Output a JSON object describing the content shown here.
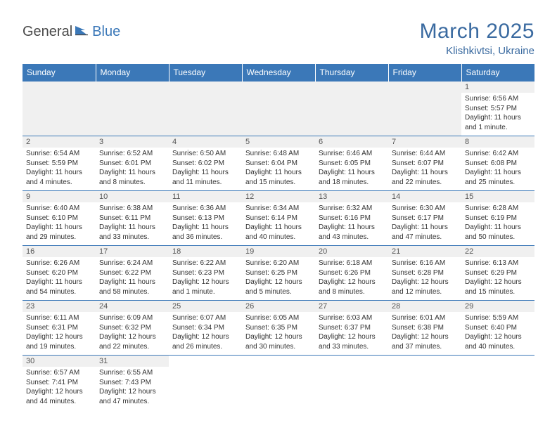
{
  "logo": {
    "general": "General",
    "blue": "Blue"
  },
  "title": {
    "month": "March 2025",
    "location": "Klishkivtsi, Ukraine"
  },
  "weekdays": [
    "Sunday",
    "Monday",
    "Tuesday",
    "Wednesday",
    "Thursday",
    "Friday",
    "Saturday"
  ],
  "colors": {
    "header_bg": "#3b78b8",
    "header_text": "#ffffff",
    "title_color": "#3a6aa0",
    "daynum_bg": "#f0f0f0",
    "border": "#3b78b8"
  },
  "grid": [
    [
      null,
      null,
      null,
      null,
      null,
      null,
      {
        "n": "1",
        "sr": "Sunrise: 6:56 AM",
        "ss": "Sunset: 5:57 PM",
        "dl": "Daylight: 11 hours and 1 minute."
      }
    ],
    [
      {
        "n": "2",
        "sr": "Sunrise: 6:54 AM",
        "ss": "Sunset: 5:59 PM",
        "dl": "Daylight: 11 hours and 4 minutes."
      },
      {
        "n": "3",
        "sr": "Sunrise: 6:52 AM",
        "ss": "Sunset: 6:01 PM",
        "dl": "Daylight: 11 hours and 8 minutes."
      },
      {
        "n": "4",
        "sr": "Sunrise: 6:50 AM",
        "ss": "Sunset: 6:02 PM",
        "dl": "Daylight: 11 hours and 11 minutes."
      },
      {
        "n": "5",
        "sr": "Sunrise: 6:48 AM",
        "ss": "Sunset: 6:04 PM",
        "dl": "Daylight: 11 hours and 15 minutes."
      },
      {
        "n": "6",
        "sr": "Sunrise: 6:46 AM",
        "ss": "Sunset: 6:05 PM",
        "dl": "Daylight: 11 hours and 18 minutes."
      },
      {
        "n": "7",
        "sr": "Sunrise: 6:44 AM",
        "ss": "Sunset: 6:07 PM",
        "dl": "Daylight: 11 hours and 22 minutes."
      },
      {
        "n": "8",
        "sr": "Sunrise: 6:42 AM",
        "ss": "Sunset: 6:08 PM",
        "dl": "Daylight: 11 hours and 25 minutes."
      }
    ],
    [
      {
        "n": "9",
        "sr": "Sunrise: 6:40 AM",
        "ss": "Sunset: 6:10 PM",
        "dl": "Daylight: 11 hours and 29 minutes."
      },
      {
        "n": "10",
        "sr": "Sunrise: 6:38 AM",
        "ss": "Sunset: 6:11 PM",
        "dl": "Daylight: 11 hours and 33 minutes."
      },
      {
        "n": "11",
        "sr": "Sunrise: 6:36 AM",
        "ss": "Sunset: 6:13 PM",
        "dl": "Daylight: 11 hours and 36 minutes."
      },
      {
        "n": "12",
        "sr": "Sunrise: 6:34 AM",
        "ss": "Sunset: 6:14 PM",
        "dl": "Daylight: 11 hours and 40 minutes."
      },
      {
        "n": "13",
        "sr": "Sunrise: 6:32 AM",
        "ss": "Sunset: 6:16 PM",
        "dl": "Daylight: 11 hours and 43 minutes."
      },
      {
        "n": "14",
        "sr": "Sunrise: 6:30 AM",
        "ss": "Sunset: 6:17 PM",
        "dl": "Daylight: 11 hours and 47 minutes."
      },
      {
        "n": "15",
        "sr": "Sunrise: 6:28 AM",
        "ss": "Sunset: 6:19 PM",
        "dl": "Daylight: 11 hours and 50 minutes."
      }
    ],
    [
      {
        "n": "16",
        "sr": "Sunrise: 6:26 AM",
        "ss": "Sunset: 6:20 PM",
        "dl": "Daylight: 11 hours and 54 minutes."
      },
      {
        "n": "17",
        "sr": "Sunrise: 6:24 AM",
        "ss": "Sunset: 6:22 PM",
        "dl": "Daylight: 11 hours and 58 minutes."
      },
      {
        "n": "18",
        "sr": "Sunrise: 6:22 AM",
        "ss": "Sunset: 6:23 PM",
        "dl": "Daylight: 12 hours and 1 minute."
      },
      {
        "n": "19",
        "sr": "Sunrise: 6:20 AM",
        "ss": "Sunset: 6:25 PM",
        "dl": "Daylight: 12 hours and 5 minutes."
      },
      {
        "n": "20",
        "sr": "Sunrise: 6:18 AM",
        "ss": "Sunset: 6:26 PM",
        "dl": "Daylight: 12 hours and 8 minutes."
      },
      {
        "n": "21",
        "sr": "Sunrise: 6:16 AM",
        "ss": "Sunset: 6:28 PM",
        "dl": "Daylight: 12 hours and 12 minutes."
      },
      {
        "n": "22",
        "sr": "Sunrise: 6:13 AM",
        "ss": "Sunset: 6:29 PM",
        "dl": "Daylight: 12 hours and 15 minutes."
      }
    ],
    [
      {
        "n": "23",
        "sr": "Sunrise: 6:11 AM",
        "ss": "Sunset: 6:31 PM",
        "dl": "Daylight: 12 hours and 19 minutes."
      },
      {
        "n": "24",
        "sr": "Sunrise: 6:09 AM",
        "ss": "Sunset: 6:32 PM",
        "dl": "Daylight: 12 hours and 22 minutes."
      },
      {
        "n": "25",
        "sr": "Sunrise: 6:07 AM",
        "ss": "Sunset: 6:34 PM",
        "dl": "Daylight: 12 hours and 26 minutes."
      },
      {
        "n": "26",
        "sr": "Sunrise: 6:05 AM",
        "ss": "Sunset: 6:35 PM",
        "dl": "Daylight: 12 hours and 30 minutes."
      },
      {
        "n": "27",
        "sr": "Sunrise: 6:03 AM",
        "ss": "Sunset: 6:37 PM",
        "dl": "Daylight: 12 hours and 33 minutes."
      },
      {
        "n": "28",
        "sr": "Sunrise: 6:01 AM",
        "ss": "Sunset: 6:38 PM",
        "dl": "Daylight: 12 hours and 37 minutes."
      },
      {
        "n": "29",
        "sr": "Sunrise: 5:59 AM",
        "ss": "Sunset: 6:40 PM",
        "dl": "Daylight: 12 hours and 40 minutes."
      }
    ],
    [
      {
        "n": "30",
        "sr": "Sunrise: 6:57 AM",
        "ss": "Sunset: 7:41 PM",
        "dl": "Daylight: 12 hours and 44 minutes."
      },
      {
        "n": "31",
        "sr": "Sunrise: 6:55 AM",
        "ss": "Sunset: 7:43 PM",
        "dl": "Daylight: 12 hours and 47 minutes."
      },
      null,
      null,
      null,
      null,
      null
    ]
  ]
}
